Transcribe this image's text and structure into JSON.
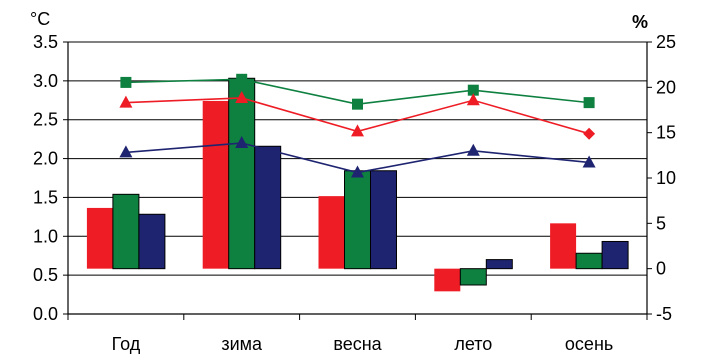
{
  "chart_data": {
    "type": "bar",
    "categories": [
      "Год",
      "зима",
      "весна",
      "лето",
      "осень"
    ],
    "left_axis": {
      "unit": "°C",
      "ylim": [
        0,
        3.5
      ],
      "ticks": [
        "0.0",
        "0.5",
        "1.0",
        "1.5",
        "2.0",
        "2.5",
        "3.0",
        "3.5"
      ]
    },
    "right_axis": {
      "unit": "%",
      "ylim": [
        -5,
        25
      ],
      "ticks": [
        "-5",
        "0",
        "5",
        "10",
        "15",
        "20",
        "25"
      ]
    },
    "bar_series": [
      {
        "color": "#ee1c25",
        "axis": "right",
        "values": [
          6.7,
          18.5,
          8,
          -2.5,
          5
        ]
      },
      {
        "color": "#0e8040",
        "axis": "right",
        "values": [
          8.2,
          21,
          10.8,
          -1.8,
          1.7
        ]
      },
      {
        "color": "#1e2470",
        "axis": "right",
        "values": [
          6,
          13.5,
          10.8,
          1,
          3
        ]
      }
    ],
    "line_series": [
      {
        "color": "#0e8040",
        "marker": "square",
        "axis": "left",
        "values": [
          2.98,
          3.02,
          2.7,
          2.88,
          2.72
        ]
      },
      {
        "color": "#ee1c25",
        "marker": "triangle",
        "axis": "left",
        "values": [
          2.72,
          2.78,
          2.35,
          2.75,
          2.32
        ],
        "last_marker": "diamond"
      },
      {
        "color": "#1e2470",
        "marker": "triangle",
        "axis": "left",
        "values": [
          2.08,
          2.2,
          1.82,
          2.1,
          1.95
        ]
      }
    ],
    "grid": "horizontal-major",
    "legend": "none"
  }
}
